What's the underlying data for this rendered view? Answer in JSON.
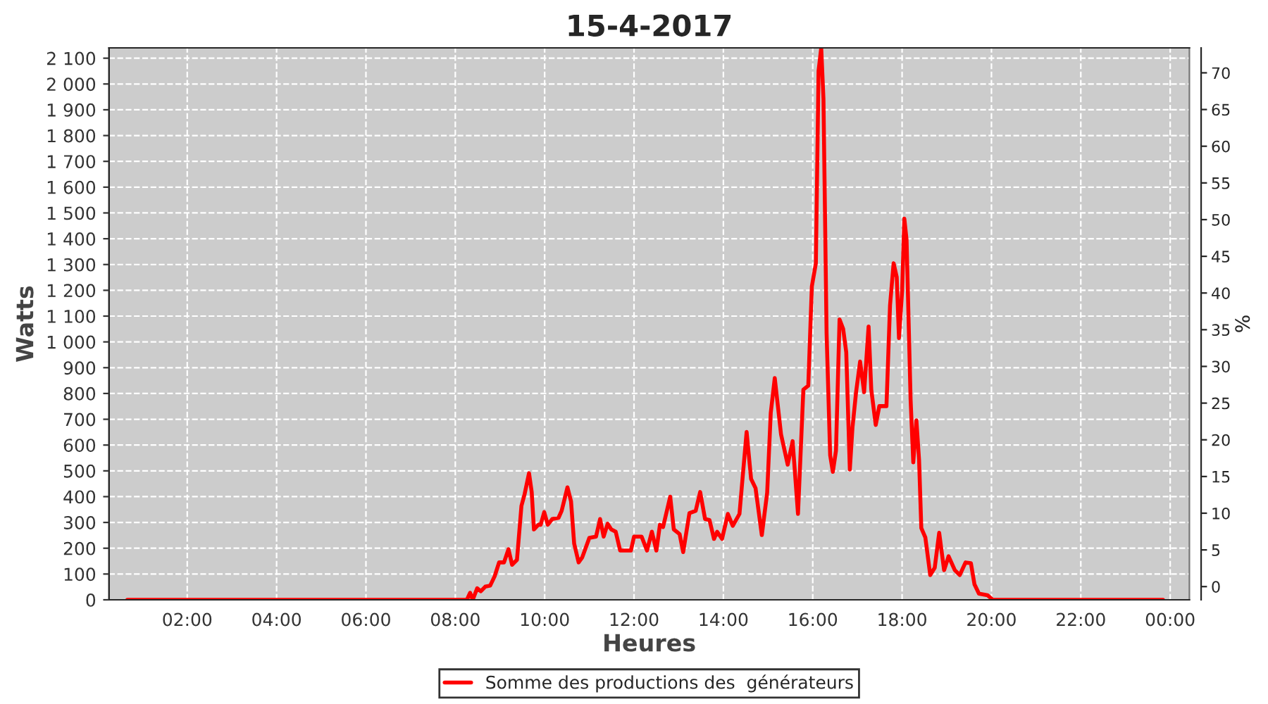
{
  "chart_data": {
    "type": "line",
    "title": "15-4-2017",
    "xlabel": "Heures",
    "ylabel": "Watts",
    "y2label": "%",
    "xlim": [
      0.25,
      24.43
    ],
    "xticks": [
      {
        "value": 2,
        "label": "02:00"
      },
      {
        "value": 4,
        "label": "04:00"
      },
      {
        "value": 6,
        "label": "06:00"
      },
      {
        "value": 8,
        "label": "08:00"
      },
      {
        "value": 10,
        "label": "10:00"
      },
      {
        "value": 12,
        "label": "12:00"
      },
      {
        "value": 14,
        "label": "14:00"
      },
      {
        "value": 16,
        "label": "16:00"
      },
      {
        "value": 18,
        "label": "18:00"
      },
      {
        "value": 20,
        "label": "20:00"
      },
      {
        "value": 22,
        "label": "22:00"
      },
      {
        "value": 24,
        "label": "00:00"
      }
    ],
    "ylim": [
      0,
      2140
    ],
    "yticks": [
      0,
      100,
      200,
      300,
      400,
      500,
      600,
      700,
      800,
      900,
      {
        "value": 1000,
        "label": "1 000"
      },
      {
        "value": 1100,
        "label": "1 100"
      },
      {
        "value": 1200,
        "label": "1 200"
      },
      {
        "value": 1300,
        "label": "1 300"
      },
      {
        "value": 1400,
        "label": "1 400"
      },
      {
        "value": 1500,
        "label": "1 500"
      },
      {
        "value": 1600,
        "label": "1 600"
      },
      {
        "value": 1700,
        "label": "1 700"
      },
      {
        "value": 1800,
        "label": "1 800"
      },
      {
        "value": 1900,
        "label": "1 900"
      },
      {
        "value": 2000,
        "label": "2 000"
      },
      {
        "value": 2100,
        "label": "2 100"
      }
    ],
    "y2lim": [
      -1.8,
      73.4
    ],
    "y2ticks": [
      0,
      5,
      10,
      15,
      20,
      25,
      30,
      35,
      40,
      45,
      50,
      55,
      60,
      65,
      70
    ],
    "grid": true,
    "legend": "bottom",
    "marker": "none",
    "line_style": "solid",
    "series": [
      {
        "name": "Somme des productions des  générateurs",
        "color": "#ff0000",
        "x": [
          0.66,
          8.26,
          8.33,
          8.39,
          8.49,
          8.57,
          8.67,
          8.78,
          8.88,
          8.98,
          9.09,
          9.19,
          9.27,
          9.38,
          9.48,
          9.55,
          9.65,
          9.71,
          9.76,
          9.86,
          9.91,
          9.99,
          10.07,
          10.17,
          10.31,
          10.38,
          10.51,
          10.59,
          10.66,
          10.76,
          10.84,
          11.0,
          11.15,
          11.24,
          11.32,
          11.41,
          11.49,
          11.59,
          11.69,
          11.83,
          11.93,
          12.0,
          12.17,
          12.29,
          12.4,
          12.5,
          12.58,
          12.65,
          12.81,
          12.89,
          13.02,
          13.1,
          13.24,
          13.38,
          13.48,
          13.59,
          13.69,
          13.79,
          13.86,
          13.97,
          14.1,
          14.21,
          14.36,
          14.41,
          14.52,
          14.62,
          14.72,
          14.86,
          14.98,
          15.06,
          15.15,
          15.29,
          15.44,
          15.55,
          15.67,
          15.79,
          15.9,
          15.98,
          16.07,
          16.13,
          16.19,
          16.24,
          16.31,
          16.39,
          16.45,
          16.52,
          16.6,
          16.68,
          16.75,
          16.83,
          16.89,
          16.97,
          17.06,
          17.15,
          17.25,
          17.31,
          17.41,
          17.49,
          17.65,
          17.73,
          17.81,
          17.88,
          17.93,
          18.0,
          18.05,
          18.1,
          18.19,
          18.25,
          18.32,
          18.38,
          18.43,
          18.52,
          18.63,
          18.73,
          18.83,
          18.94,
          19.04,
          19.18,
          19.29,
          19.42,
          19.54,
          19.62,
          19.72,
          19.91,
          20.03,
          23.84
        ],
        "values": [
          0,
          0,
          27,
          0,
          45,
          33,
          51,
          55,
          91,
          145,
          145,
          196,
          136,
          155,
          364,
          409,
          491,
          418,
          273,
          291,
          291,
          340,
          291,
          313,
          318,
          345,
          436,
          382,
          218,
          145,
          164,
          240,
          245,
          313,
          245,
          295,
          273,
          264,
          191,
          191,
          191,
          245,
          245,
          191,
          264,
          191,
          291,
          282,
          400,
          273,
          255,
          185,
          336,
          345,
          418,
          313,
          309,
          236,
          264,
          236,
          333,
          287,
          333,
          433,
          651,
          469,
          433,
          251,
          415,
          724,
          860,
          642,
          524,
          615,
          333,
          815,
          830,
          1215,
          1305,
          2051,
          2140,
          1942,
          1033,
          560,
          496,
          578,
          1087,
          1051,
          960,
          505,
          669,
          805,
          924,
          805,
          1060,
          815,
          678,
          751,
          751,
          1142,
          1305,
          1251,
          1015,
          1196,
          1478,
          1396,
          778,
          533,
          696,
          542,
          278,
          242,
          96,
          124,
          260,
          115,
          169,
          115,
          96,
          145,
          142,
          60,
          24,
          18,
          0,
          0
        ]
      }
    ]
  }
}
